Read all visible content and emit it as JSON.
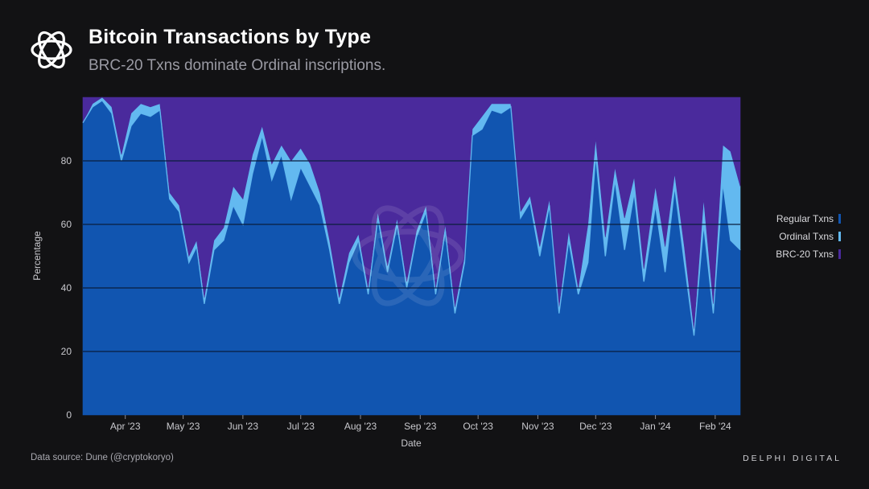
{
  "header": {
    "title": "Bitcoin Transactions by Type",
    "subtitle": "BRC-20 Txns dominate Ordinal inscriptions."
  },
  "footer": {
    "source": "Data source: Dune (@cryptokoryo)",
    "brand": "DELPHI DIGITAL"
  },
  "colors": {
    "background": "#121214",
    "regular": "#1155b0",
    "ordinal": "#63b9f0",
    "brc20": "#4a2a9c",
    "gridline": "#0a1d3c"
  },
  "chart_data": {
    "type": "area",
    "stacked": true,
    "normalized_percent": true,
    "xlabel": "Date",
    "ylabel": "Percentage",
    "ylim": [
      0,
      100
    ],
    "yticks": [
      0,
      20,
      40,
      60,
      80
    ],
    "xlim": [
      "2023-03-10",
      "2024-02-14"
    ],
    "xticks": [
      {
        "date": "2023-04-01",
        "label": "Apr '23"
      },
      {
        "date": "2023-05-01",
        "label": "May '23"
      },
      {
        "date": "2023-06-01",
        "label": "Jun '23"
      },
      {
        "date": "2023-07-01",
        "label": "Jul '23"
      },
      {
        "date": "2023-08-01",
        "label": "Aug '23"
      },
      {
        "date": "2023-09-01",
        "label": "Sep '23"
      },
      {
        "date": "2023-10-01",
        "label": "Oct '23"
      },
      {
        "date": "2023-11-01",
        "label": "Nov '23"
      },
      {
        "date": "2023-12-01",
        "label": "Dec '23"
      },
      {
        "date": "2024-01-01",
        "label": "Jan '24"
      },
      {
        "date": "2024-02-01",
        "label": "Feb '24"
      }
    ],
    "grid": true,
    "legend_position": "right",
    "series": [
      {
        "name": "Regular Txns",
        "color": "#1155b0",
        "points": [
          [
            "2023-03-10",
            92
          ],
          [
            "2023-03-15",
            97
          ],
          [
            "2023-03-20",
            99
          ],
          [
            "2023-03-25",
            95
          ],
          [
            "2023-03-30",
            80
          ],
          [
            "2023-04-04",
            91
          ],
          [
            "2023-04-09",
            95
          ],
          [
            "2023-04-14",
            94
          ],
          [
            "2023-04-19",
            96
          ],
          [
            "2023-04-24",
            68
          ],
          [
            "2023-04-29",
            64
          ],
          [
            "2023-05-04",
            48
          ],
          [
            "2023-05-08",
            53
          ],
          [
            "2023-05-12",
            35
          ],
          [
            "2023-05-17",
            52
          ],
          [
            "2023-05-22",
            55
          ],
          [
            "2023-05-27",
            66
          ],
          [
            "2023-06-01",
            60
          ],
          [
            "2023-06-06",
            76
          ],
          [
            "2023-06-11",
            88
          ],
          [
            "2023-06-16",
            74
          ],
          [
            "2023-06-21",
            82
          ],
          [
            "2023-06-26",
            68
          ],
          [
            "2023-07-01",
            78
          ],
          [
            "2023-07-06",
            72
          ],
          [
            "2023-07-11",
            66
          ],
          [
            "2023-07-16",
            52
          ],
          [
            "2023-07-21",
            35
          ],
          [
            "2023-07-26",
            48
          ],
          [
            "2023-07-31",
            55
          ],
          [
            "2023-08-05",
            38
          ],
          [
            "2023-08-10",
            62
          ],
          [
            "2023-08-15",
            45
          ],
          [
            "2023-08-20",
            60
          ],
          [
            "2023-08-25",
            40
          ],
          [
            "2023-08-30",
            56
          ],
          [
            "2023-09-04",
            64
          ],
          [
            "2023-09-09",
            38
          ],
          [
            "2023-09-14",
            58
          ],
          [
            "2023-09-19",
            32
          ],
          [
            "2023-09-24",
            48
          ],
          [
            "2023-09-28",
            88
          ],
          [
            "2023-10-03",
            90
          ],
          [
            "2023-10-08",
            96
          ],
          [
            "2023-10-13",
            95
          ],
          [
            "2023-10-18",
            97
          ],
          [
            "2023-10-23",
            62
          ],
          [
            "2023-10-28",
            67
          ],
          [
            "2023-11-02",
            50
          ],
          [
            "2023-11-07",
            66
          ],
          [
            "2023-11-12",
            32
          ],
          [
            "2023-11-17",
            55
          ],
          [
            "2023-11-22",
            38
          ],
          [
            "2023-11-27",
            48
          ],
          [
            "2023-12-01",
            82
          ],
          [
            "2023-12-06",
            50
          ],
          [
            "2023-12-11",
            74
          ],
          [
            "2023-12-16",
            52
          ],
          [
            "2023-12-21",
            70
          ],
          [
            "2023-12-26",
            42
          ],
          [
            "2024-01-01",
            66
          ],
          [
            "2024-01-06",
            45
          ],
          [
            "2024-01-11",
            72
          ],
          [
            "2024-01-16",
            48
          ],
          [
            "2024-01-21",
            25
          ],
          [
            "2024-01-26",
            60
          ],
          [
            "2024-01-31",
            32
          ],
          [
            "2024-02-05",
            73
          ],
          [
            "2024-02-09",
            55
          ],
          [
            "2024-02-14",
            52
          ]
        ]
      },
      {
        "name": "Ordinal Txns",
        "color": "#63b9f0",
        "points": [
          [
            "2023-03-10",
            0
          ],
          [
            "2023-03-15",
            1
          ],
          [
            "2023-03-20",
            1
          ],
          [
            "2023-03-25",
            2
          ],
          [
            "2023-03-30",
            2
          ],
          [
            "2023-04-04",
            4
          ],
          [
            "2023-04-09",
            3
          ],
          [
            "2023-04-14",
            3
          ],
          [
            "2023-04-19",
            2
          ],
          [
            "2023-04-24",
            2
          ],
          [
            "2023-04-29",
            2
          ],
          [
            "2023-05-04",
            2
          ],
          [
            "2023-05-08",
            2
          ],
          [
            "2023-05-12",
            2
          ],
          [
            "2023-05-17",
            3
          ],
          [
            "2023-05-22",
            4
          ],
          [
            "2023-05-27",
            6
          ],
          [
            "2023-06-01",
            8
          ],
          [
            "2023-06-06",
            6
          ],
          [
            "2023-06-11",
            3
          ],
          [
            "2023-06-16",
            5
          ],
          [
            "2023-06-21",
            3
          ],
          [
            "2023-06-26",
            12
          ],
          [
            "2023-07-01",
            6
          ],
          [
            "2023-07-06",
            7
          ],
          [
            "2023-07-11",
            4
          ],
          [
            "2023-07-16",
            3
          ],
          [
            "2023-07-21",
            2
          ],
          [
            "2023-07-26",
            3
          ],
          [
            "2023-07-31",
            2
          ],
          [
            "2023-08-05",
            2
          ],
          [
            "2023-08-10",
            2
          ],
          [
            "2023-08-15",
            2
          ],
          [
            "2023-08-20",
            2
          ],
          [
            "2023-08-25",
            2
          ],
          [
            "2023-08-30",
            2
          ],
          [
            "2023-09-04",
            2
          ],
          [
            "2023-09-09",
            2
          ],
          [
            "2023-09-14",
            2
          ],
          [
            "2023-09-19",
            2
          ],
          [
            "2023-09-24",
            2
          ],
          [
            "2023-09-28",
            2
          ],
          [
            "2023-10-03",
            4
          ],
          [
            "2023-10-08",
            2
          ],
          [
            "2023-10-13",
            3
          ],
          [
            "2023-10-18",
            1
          ],
          [
            "2023-10-23",
            2
          ],
          [
            "2023-10-28",
            2
          ],
          [
            "2023-11-02",
            3
          ],
          [
            "2023-11-07",
            2
          ],
          [
            "2023-11-12",
            2
          ],
          [
            "2023-11-17",
            3
          ],
          [
            "2023-11-22",
            2
          ],
          [
            "2023-11-27",
            12
          ],
          [
            "2023-12-01",
            5
          ],
          [
            "2023-12-06",
            6
          ],
          [
            "2023-12-11",
            4
          ],
          [
            "2023-12-16",
            10
          ],
          [
            "2023-12-21",
            5
          ],
          [
            "2023-12-26",
            4
          ],
          [
            "2024-01-01",
            6
          ],
          [
            "2024-01-06",
            8
          ],
          [
            "2024-01-11",
            4
          ],
          [
            "2024-01-16",
            5
          ],
          [
            "2024-01-21",
            2
          ],
          [
            "2024-01-26",
            8
          ],
          [
            "2024-01-31",
            3
          ],
          [
            "2024-02-05",
            12
          ],
          [
            "2024-02-09",
            28
          ],
          [
            "2024-02-14",
            20
          ]
        ]
      },
      {
        "name": "BRC-20 Txns",
        "color": "#4a2a9c",
        "points": [
          [
            "2023-03-10",
            8
          ],
          [
            "2023-03-15",
            2
          ],
          [
            "2023-03-20",
            0
          ],
          [
            "2023-03-25",
            3
          ],
          [
            "2023-03-30",
            18
          ],
          [
            "2023-04-04",
            5
          ],
          [
            "2023-04-09",
            2
          ],
          [
            "2023-04-14",
            3
          ],
          [
            "2023-04-19",
            2
          ],
          [
            "2023-04-24",
            30
          ],
          [
            "2023-04-29",
            34
          ],
          [
            "2023-05-04",
            50
          ],
          [
            "2023-05-08",
            45
          ],
          [
            "2023-05-12",
            63
          ],
          [
            "2023-05-17",
            45
          ],
          [
            "2023-05-22",
            41
          ],
          [
            "2023-05-27",
            28
          ],
          [
            "2023-06-01",
            32
          ],
          [
            "2023-06-06",
            18
          ],
          [
            "2023-06-11",
            9
          ],
          [
            "2023-06-16",
            21
          ],
          [
            "2023-06-21",
            15
          ],
          [
            "2023-06-26",
            20
          ],
          [
            "2023-07-01",
            16
          ],
          [
            "2023-07-06",
            21
          ],
          [
            "2023-07-11",
            30
          ],
          [
            "2023-07-16",
            45
          ],
          [
            "2023-07-21",
            63
          ],
          [
            "2023-07-26",
            49
          ],
          [
            "2023-07-31",
            43
          ],
          [
            "2023-08-05",
            60
          ],
          [
            "2023-08-10",
            36
          ],
          [
            "2023-08-15",
            53
          ],
          [
            "2023-08-20",
            38
          ],
          [
            "2023-08-25",
            58
          ],
          [
            "2023-08-30",
            42
          ],
          [
            "2023-09-04",
            34
          ],
          [
            "2023-09-09",
            60
          ],
          [
            "2023-09-14",
            40
          ],
          [
            "2023-09-19",
            66
          ],
          [
            "2023-09-24",
            50
          ],
          [
            "2023-09-28",
            10
          ],
          [
            "2023-10-03",
            6
          ],
          [
            "2023-10-08",
            2
          ],
          [
            "2023-10-13",
            2
          ],
          [
            "2023-10-18",
            2
          ],
          [
            "2023-10-23",
            36
          ],
          [
            "2023-10-28",
            31
          ],
          [
            "2023-11-02",
            47
          ],
          [
            "2023-11-07",
            32
          ],
          [
            "2023-11-12",
            66
          ],
          [
            "2023-11-17",
            42
          ],
          [
            "2023-11-22",
            60
          ],
          [
            "2023-11-27",
            40
          ],
          [
            "2023-12-01",
            13
          ],
          [
            "2023-12-06",
            44
          ],
          [
            "2023-12-11",
            22
          ],
          [
            "2023-12-16",
            38
          ],
          [
            "2023-12-21",
            25
          ],
          [
            "2023-12-26",
            54
          ],
          [
            "2024-01-01",
            28
          ],
          [
            "2024-01-06",
            47
          ],
          [
            "2024-01-11",
            24
          ],
          [
            "2024-01-16",
            47
          ],
          [
            "2024-01-21",
            73
          ],
          [
            "2024-01-26",
            32
          ],
          [
            "2024-01-31",
            65
          ],
          [
            "2024-02-05",
            15
          ],
          [
            "2024-02-09",
            17
          ],
          [
            "2024-02-14",
            28
          ]
        ]
      }
    ]
  }
}
